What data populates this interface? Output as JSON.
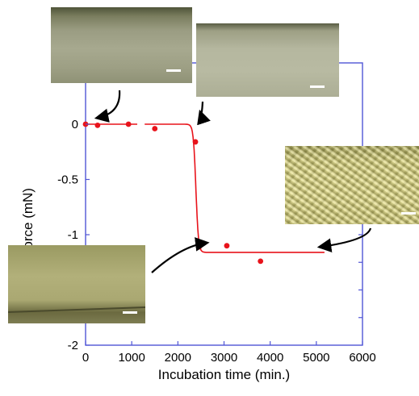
{
  "chart_data": {
    "type": "scatter",
    "xlabel": "Incubation time (min.)",
    "ylabel": "Force (mN)",
    "xlim": [
      0,
      6000
    ],
    "ylim": [
      -2,
      0.25
    ],
    "xticks": [
      "0",
      "1000",
      "2000",
      "3000",
      "4000",
      "5000",
      "6000"
    ],
    "xtick_values": [
      0,
      1000,
      2000,
      3000,
      4000,
      5000,
      6000
    ],
    "yticks": [
      "0",
      "-0.5",
      "-1",
      "-2"
    ],
    "ytick_values": [
      0,
      -0.5,
      -1,
      -2
    ],
    "series": [
      {
        "kind": "points",
        "color": "#e8131b",
        "x": [
          0,
          260,
          930,
          1500,
          2380,
          2460,
          3060,
          3790,
          5190
        ],
        "y": [
          0,
          -0.01,
          0,
          -0.04,
          -0.16,
          -1.11,
          -1.1,
          -1.24,
          -1.11
        ]
      },
      {
        "kind": "fit-curve",
        "color": "#e8131b",
        "segments": [
          {
            "x": [
              0,
              1120
            ],
            "y": [
              0,
              0
            ]
          },
          {
            "x": [
              1280,
              5180
            ],
            "y": [
              0,
              -1.16
            ],
            "midpoint_x": 2390
          }
        ]
      }
    ],
    "annotations": [
      {
        "type": "photo",
        "name": "photo-flat-early",
        "arrow_to": {
          "x": 300,
          "y": 0
        }
      },
      {
        "type": "photo",
        "name": "photo-flat-before-transition",
        "arrow_to": {
          "x": 2490,
          "y": 0
        }
      },
      {
        "type": "photo",
        "name": "photo-wrinkled-late",
        "arrow_to": {
          "x": 5180,
          "y": -1.11
        }
      },
      {
        "type": "photo",
        "name": "photo-after-transition",
        "arrow_to": {
          "x": 2750,
          "y": -1.06
        }
      }
    ],
    "frame_color": "#4f55d6",
    "grid": false
  }
}
